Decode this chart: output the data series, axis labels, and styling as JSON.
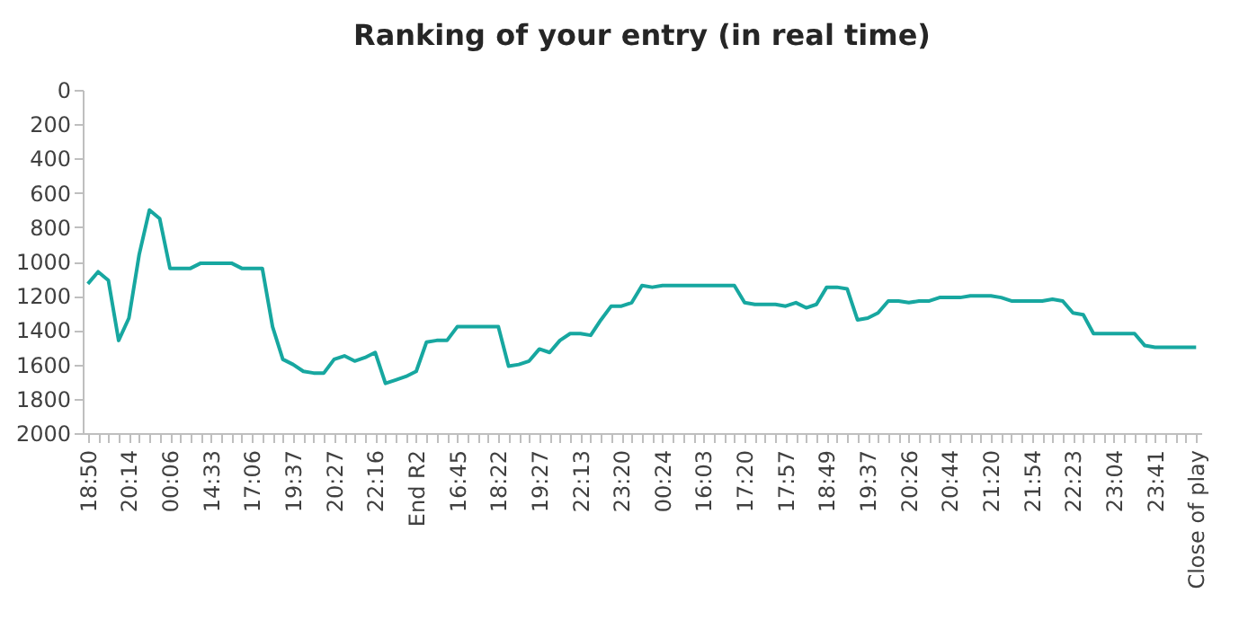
{
  "chart_data": {
    "type": "line",
    "title": "Ranking of your entry (in real time)",
    "categories": [
      "18:50",
      null,
      null,
      null,
      "20:14",
      null,
      null,
      null,
      "00:06",
      null,
      null,
      null,
      "14:33",
      null,
      null,
      null,
      "17:06",
      null,
      null,
      null,
      "19:37",
      null,
      null,
      null,
      "20:27",
      null,
      null,
      null,
      "22:16",
      null,
      null,
      null,
      "End R2",
      null,
      null,
      null,
      "16:45",
      null,
      null,
      null,
      "18:22",
      null,
      null,
      null,
      "19:27",
      null,
      null,
      null,
      "22:13",
      null,
      null,
      null,
      "23:20",
      null,
      null,
      null,
      "00:24",
      null,
      null,
      null,
      "16:03",
      null,
      null,
      null,
      "17:20",
      null,
      null,
      null,
      "17:57",
      null,
      null,
      null,
      "18:49",
      null,
      null,
      null,
      "19:37",
      null,
      null,
      null,
      "20:26",
      null,
      null,
      null,
      "20:44",
      null,
      null,
      null,
      "21:20",
      null,
      null,
      null,
      "21:54",
      null,
      null,
      null,
      "22:23",
      null,
      null,
      null,
      "23:04",
      null,
      null,
      null,
      "23:41",
      null,
      null,
      null,
      "Close of play"
    ],
    "series": [
      {
        "color": "#17a7a0",
        "values": [
          1130,
          1060,
          1110,
          1460,
          1330,
          960,
          700,
          750,
          1040,
          1040,
          1040,
          1010,
          1010,
          1010,
          1010,
          1040,
          1040,
          1040,
          1380,
          1570,
          1600,
          1640,
          1650,
          1650,
          1570,
          1550,
          1580,
          1560,
          1530,
          1710,
          1690,
          1670,
          1640,
          1470,
          1460,
          1460,
          1380,
          1380,
          1380,
          1380,
          1380,
          1610,
          1600,
          1580,
          1510,
          1530,
          1460,
          1420,
          1420,
          1430,
          1340,
          1260,
          1260,
          1240,
          1140,
          1150,
          1140,
          1140,
          1140,
          1140,
          1140,
          1140,
          1140,
          1140,
          1240,
          1250,
          1250,
          1250,
          1260,
          1240,
          1270,
          1250,
          1150,
          1150,
          1160,
          1340,
          1330,
          1300,
          1230,
          1230,
          1240,
          1230,
          1230,
          1210,
          1210,
          1210,
          1200,
          1200,
          1200,
          1210,
          1230,
          1230,
          1230,
          1230,
          1220,
          1230,
          1300,
          1310,
          1420,
          1420,
          1420,
          1420,
          1420,
          1490,
          1500,
          1500,
          1500,
          1500,
          1500
        ]
      }
    ],
    "ylim": [
      2000,
      0
    ],
    "yticks": [
      0,
      200,
      400,
      600,
      800,
      1000,
      1200,
      1400,
      1600,
      1800,
      2000
    ],
    "grid": false,
    "legend": false
  }
}
